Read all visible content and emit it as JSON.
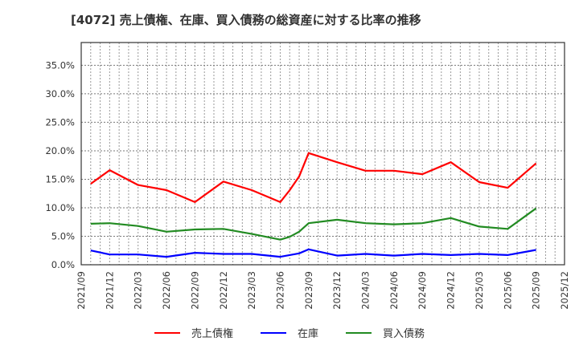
{
  "title": "[4072]  売上債権、在庫、買入債務の総資産に対する比率の推移",
  "chart_data": {
    "type": "line",
    "title": "[4072]  売上債権、在庫、買入債務の総資産に対する比率の推移",
    "xlabel": "",
    "ylabel": "",
    "ylim": [
      0,
      0.39
    ],
    "y_ticks": [
      "0.0%",
      "5.0%",
      "10.0%",
      "15.0%",
      "20.0%",
      "25.0%",
      "30.0%",
      "35.0%"
    ],
    "y_tick_values": [
      0,
      5,
      10,
      15,
      20,
      25,
      30,
      35
    ],
    "x_ticks": [
      "2021/09",
      "2021/12",
      "2022/03",
      "2022/06",
      "2022/09",
      "2022/12",
      "2023/03",
      "2023/06",
      "2023/09",
      "2023/12",
      "2024/03",
      "2024/06",
      "2024/09",
      "2024/12",
      "2025/03",
      "2025/06",
      "2025/09",
      "2025/12"
    ],
    "grid": true,
    "legend_position": "bottom",
    "x": [
      "2021/10",
      "2021/12",
      "2022/03",
      "2022/06",
      "2022/09",
      "2022/12",
      "2023/03",
      "2023/06",
      "2023/07",
      "2023/08",
      "2023/09",
      "2023/12",
      "2024/03",
      "2024/06",
      "2024/09",
      "2024/12",
      "2025/03",
      "2025/06",
      "2025/09"
    ],
    "series": [
      {
        "name": "売上債権",
        "color": "#ff0000",
        "values": [
          14.2,
          16.6,
          14.0,
          13.1,
          11.0,
          14.6,
          13.1,
          11.0,
          13.1,
          15.5,
          19.6,
          18.0,
          16.5,
          16.5,
          15.9,
          18.0,
          14.5,
          13.5,
          17.8
        ]
      },
      {
        "name": "在庫",
        "color": "#0000ff",
        "values": [
          2.5,
          1.8,
          1.8,
          1.4,
          2.1,
          1.9,
          1.9,
          1.4,
          1.7,
          2.0,
          2.7,
          1.6,
          1.9,
          1.6,
          1.9,
          1.7,
          1.9,
          1.7,
          2.6
        ]
      },
      {
        "name": "買入債務",
        "color": "#228b22",
        "values": [
          7.2,
          7.3,
          6.8,
          5.8,
          6.2,
          6.3,
          5.4,
          4.4,
          4.9,
          5.8,
          7.3,
          7.9,
          7.3,
          7.1,
          7.3,
          8.2,
          6.7,
          6.3,
          9.9
        ]
      }
    ]
  },
  "legend": [
    {
      "label": "売上債権",
      "color": "#ff0000"
    },
    {
      "label": "在庫",
      "color": "#0000ff"
    },
    {
      "label": "買入債務",
      "color": "#228b22"
    }
  ]
}
